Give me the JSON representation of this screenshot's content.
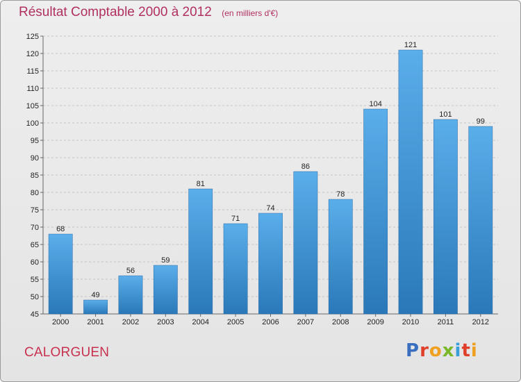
{
  "chart_data": {
    "type": "bar",
    "title": "Résultat Comptable 2000 à 2012",
    "subtitle": "(en milliers d'€)",
    "categories": [
      "2000",
      "2001",
      "2002",
      "2003",
      "2004",
      "2005",
      "2006",
      "2007",
      "2008",
      "2009",
      "2010",
      "2011",
      "2012"
    ],
    "values": [
      68,
      49,
      56,
      59,
      81,
      71,
      74,
      86,
      78,
      104,
      121,
      101,
      99
    ],
    "ylim": [
      45,
      125
    ],
    "yticks": [
      45,
      50,
      55,
      60,
      65,
      70,
      75,
      80,
      85,
      90,
      95,
      100,
      105,
      110,
      115,
      120,
      125
    ],
    "grid": true,
    "colors": {
      "bar_top": "#5aaeea",
      "bar_bottom": "#2a78b8",
      "title": "#b03060"
    }
  },
  "footer": {
    "place": "CALORGUEN",
    "brand": "Proxiti",
    "brand_colors": [
      "#3a6fc0",
      "#e0402a",
      "#f0a020",
      "#7ab82a",
      "#3a9fd8",
      "#e0402a",
      "#f0a020"
    ]
  }
}
